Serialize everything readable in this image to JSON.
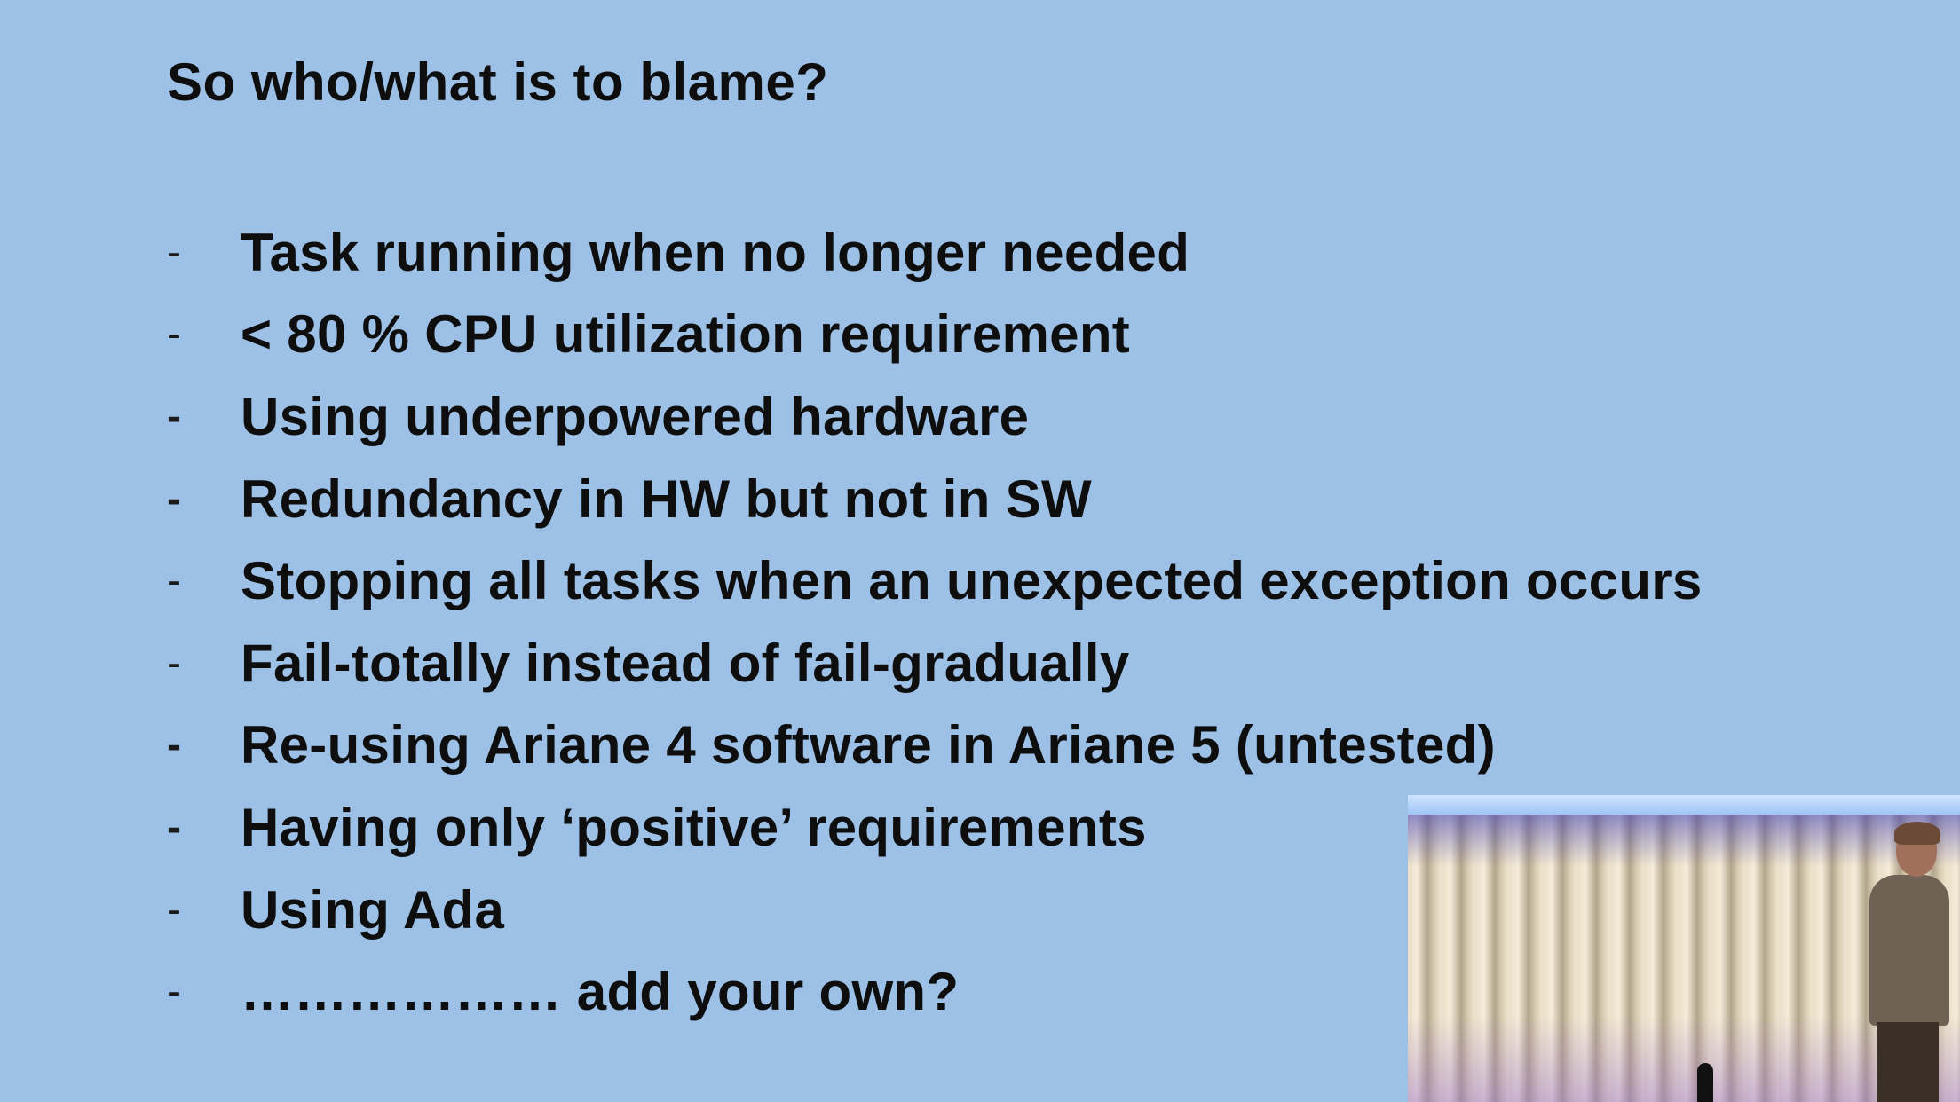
{
  "slide": {
    "title": "So who/what is to blame?",
    "bullets": [
      {
        "dash": "-",
        "text": "Task running when no longer needed"
      },
      {
        "dash": "-",
        "text": "< 80 % CPU utilization requirement"
      },
      {
        "dash": "-",
        "text": "Using underpowered hardware"
      },
      {
        "dash": "-",
        "text": "Redundancy in HW but not in SW"
      },
      {
        "dash": "-",
        "text": "Stopping all tasks when an unexpected exception occurs"
      },
      {
        "dash": "-",
        "text": "Fail-totally instead of fail-gradually"
      },
      {
        "dash": "-",
        "text": "Re-using Ariane 4 software in Ariane 5 (untested)"
      },
      {
        "dash": "-",
        "text": "Having only ‘positive’ requirements"
      },
      {
        "dash": "-",
        "text": "Using Ada"
      },
      {
        "dash": "-",
        "text": "……………… add your own?"
      }
    ]
  },
  "colors": {
    "background": "#9dc1e6",
    "text": "#0e0e0e"
  }
}
